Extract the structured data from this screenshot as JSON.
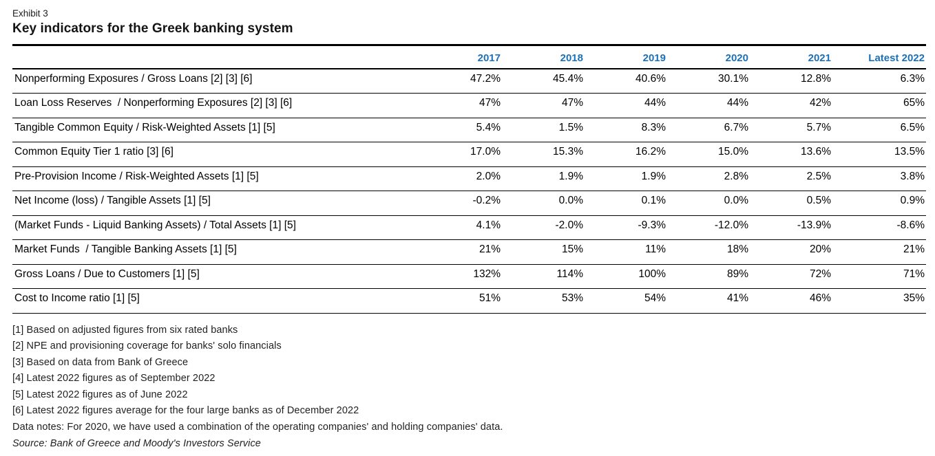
{
  "exhibit_label": "Exhibit 3",
  "title": "Key indicators for the Greek banking system",
  "colors": {
    "header_blue": "#1c70b8",
    "rule_black": "#000000"
  },
  "table": {
    "columns": [
      "2017",
      "2018",
      "2019",
      "2020",
      "2021",
      "Latest 2022"
    ],
    "rows": [
      {
        "label": "Nonperforming Exposures / Gross Loans [2] [3] [6]",
        "values": [
          "47.2%",
          "45.4%",
          "40.6%",
          "30.1%",
          "12.8%",
          "6.3%"
        ]
      },
      {
        "label": "Loan Loss Reserves  / Nonperforming Exposures [2] [3] [6]",
        "values": [
          "47%",
          "47%",
          "44%",
          "44%",
          "42%",
          "65%"
        ]
      },
      {
        "label": "Tangible Common Equity / Risk-Weighted Assets [1] [5]",
        "values": [
          "5.4%",
          "1.5%",
          "8.3%",
          "6.7%",
          "5.7%",
          "6.5%"
        ]
      },
      {
        "label": "Common Equity Tier 1 ratio [3] [6]",
        "values": [
          "17.0%",
          "15.3%",
          "16.2%",
          "15.0%",
          "13.6%",
          "13.5%"
        ]
      },
      {
        "label": "Pre-Provision Income / Risk-Weighted Assets [1] [5]",
        "values": [
          "2.0%",
          "1.9%",
          "1.9%",
          "2.8%",
          "2.5%",
          "3.8%"
        ]
      },
      {
        "label": "Net Income (loss) / Tangible Assets [1] [5]",
        "values": [
          "-0.2%",
          "0.0%",
          "0.1%",
          "0.0%",
          "0.5%",
          "0.9%"
        ]
      },
      {
        "label": "(Market Funds - Liquid Banking Assets) / Total Assets [1] [5]",
        "values": [
          "4.1%",
          "-2.0%",
          "-9.3%",
          "-12.0%",
          "-13.9%",
          "-8.6%"
        ]
      },
      {
        "label": "Market Funds  / Tangible Banking Assets [1] [5]",
        "values": [
          "21%",
          "15%",
          "11%",
          "18%",
          "20%",
          "21%"
        ]
      },
      {
        "label": "Gross Loans / Due to Customers [1] [5]",
        "values": [
          "132%",
          "114%",
          "100%",
          "89%",
          "72%",
          "71%"
        ]
      },
      {
        "label": "Cost to Income ratio [1] [5]",
        "values": [
          "51%",
          "53%",
          "54%",
          "41%",
          "46%",
          "35%"
        ]
      }
    ]
  },
  "footnotes": [
    "[1] Based on adjusted figures from six rated banks",
    "[2] NPE and provisioning coverage for banks' solo financials",
    "[3] Based on data from Bank of Greece",
    "[4] Latest 2022 figures as of September 2022",
    "[5] Latest 2022 figures as of June 2022",
    "[6] Latest 2022 figures average for the four large banks as of December 2022",
    "Data notes: For 2020, we have used a combination of the operating companies' and holding companies' data."
  ],
  "source": "Source: Bank of Greece and Moody's Investors Service"
}
